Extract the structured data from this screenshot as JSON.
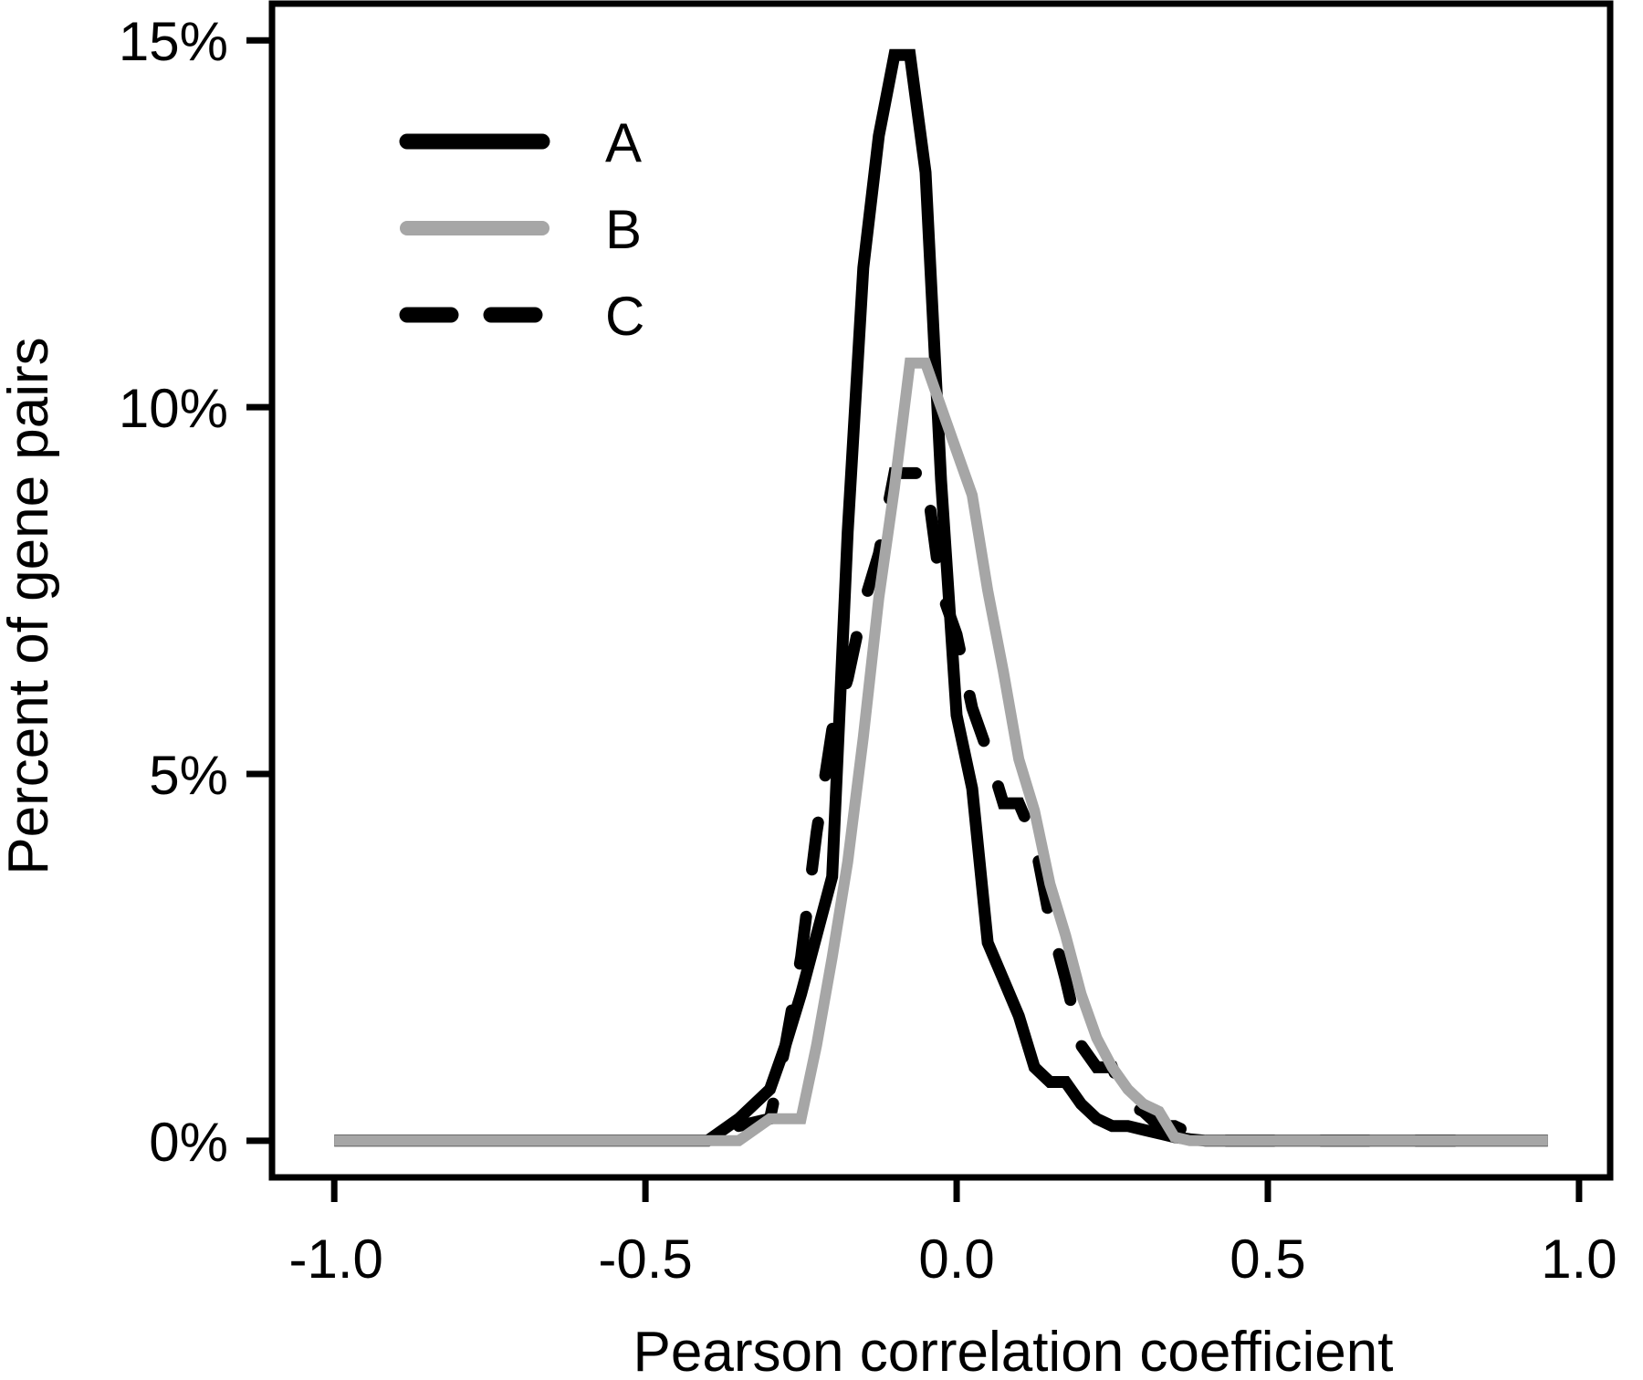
{
  "chart_data": {
    "type": "line",
    "title": "",
    "xlabel": "Pearson correlation coefficient",
    "ylabel": "Percent of gene pairs",
    "xlim": [
      -1.1,
      1.05
    ],
    "ylim": [
      -0.5,
      15.5
    ],
    "xticks": [
      {
        "value": -1.0,
        "label": "-1.0"
      },
      {
        "value": -0.5,
        "label": "-0.5"
      },
      {
        "value": 0.0,
        "label": "0.0"
      },
      {
        "value": 0.5,
        "label": "0.5"
      },
      {
        "value": 1.0,
        "label": "1.0"
      }
    ],
    "yticks": [
      {
        "value": 0,
        "label": "0%"
      },
      {
        "value": 5,
        "label": "5%"
      },
      {
        "value": 10,
        "label": "10%"
      },
      {
        "value": 15,
        "label": "15%"
      }
    ],
    "grid": false,
    "legend_position": "top-left",
    "series": [
      {
        "name": "A",
        "color": "#000000",
        "style": "solid",
        "x": [
          -1.0,
          -0.95,
          -0.9,
          -0.85,
          -0.8,
          -0.75,
          -0.7,
          -0.65,
          -0.6,
          -0.55,
          -0.5,
          -0.45,
          -0.4,
          -0.35,
          -0.3,
          -0.275,
          -0.25,
          -0.225,
          -0.2,
          -0.175,
          -0.15,
          -0.125,
          -0.1,
          -0.075,
          -0.05,
          -0.025,
          0.0,
          0.025,
          0.05,
          0.075,
          0.1,
          0.125,
          0.15,
          0.175,
          0.2,
          0.225,
          0.25,
          0.275,
          0.3,
          0.325,
          0.35,
          0.375,
          0.4,
          0.425,
          0.45,
          0.475,
          0.5,
          0.525,
          0.55,
          0.575,
          0.6,
          0.625,
          0.65,
          0.675,
          0.7,
          0.725,
          0.75,
          0.775,
          0.8,
          0.825,
          0.85,
          0.875,
          0.9,
          0.925,
          0.95
        ],
        "y": [
          0,
          0,
          0,
          0,
          0,
          0,
          0,
          0,
          0,
          0,
          0,
          0,
          0,
          0.3,
          0.7,
          1.3,
          2.0,
          2.8,
          3.6,
          8.3,
          11.9,
          13.7,
          14.8,
          14.8,
          13.2,
          9.0,
          5.8,
          4.8,
          2.7,
          2.2,
          1.7,
          1.0,
          0.8,
          0.8,
          0.5,
          0.3,
          0.2,
          0.2,
          0.15,
          0.1,
          0.05,
          0.02,
          0,
          0,
          0,
          0,
          0,
          0,
          0,
          0,
          0,
          0,
          0,
          0,
          0,
          0,
          0,
          0,
          0,
          0,
          0,
          0,
          0,
          0,
          0
        ]
      },
      {
        "name": "B",
        "color": "#a6a6a6",
        "style": "solid",
        "x": [
          -1.0,
          -0.9,
          -0.8,
          -0.7,
          -0.6,
          -0.55,
          -0.5,
          -0.45,
          -0.4,
          -0.35,
          -0.3,
          -0.275,
          -0.25,
          -0.225,
          -0.2,
          -0.175,
          -0.15,
          -0.125,
          -0.1,
          -0.075,
          -0.05,
          -0.025,
          0.0,
          0.025,
          0.05,
          0.075,
          0.1,
          0.125,
          0.15,
          0.175,
          0.2,
          0.225,
          0.25,
          0.275,
          0.3,
          0.325,
          0.35,
          0.375,
          0.4,
          0.425,
          0.45,
          0.475,
          0.5,
          0.525,
          0.55,
          0.575,
          0.6,
          0.65,
          0.7,
          0.75,
          0.8,
          0.85,
          0.9,
          0.95
        ],
        "y": [
          0,
          0,
          0,
          0,
          0,
          0,
          0,
          0,
          0,
          0,
          0.3,
          0.3,
          0.3,
          1.3,
          2.5,
          3.8,
          5.5,
          7.4,
          8.9,
          10.6,
          10.6,
          10.0,
          9.4,
          8.8,
          7.5,
          6.4,
          5.2,
          4.5,
          3.5,
          2.8,
          2.0,
          1.4,
          1.0,
          0.7,
          0.5,
          0.4,
          0.05,
          0,
          0,
          0,
          0,
          0,
          0,
          0,
          0,
          0,
          0,
          0,
          0,
          0,
          0,
          0,
          0,
          0
        ]
      },
      {
        "name": "C",
        "color": "#000000",
        "style": "dashed",
        "x": [
          -0.35,
          -0.3,
          -0.275,
          -0.25,
          -0.225,
          -0.2,
          -0.175,
          -0.15,
          -0.125,
          -0.1,
          -0.075,
          -0.05,
          -0.025,
          0.0,
          0.025,
          0.05,
          0.075,
          0.1,
          0.125,
          0.15,
          0.175,
          0.2,
          0.225,
          0.25,
          0.275,
          0.3,
          0.325,
          0.35,
          0.375,
          0.4,
          0.425,
          0.45,
          0.475,
          0.5,
          0.525,
          0.55,
          0.575,
          0.6,
          0.625,
          0.65,
          0.675,
          0.7,
          0.725,
          0.75,
          0.775,
          0.8
        ],
        "y": [
          0.2,
          0.3,
          1.3,
          2.5,
          4.2,
          5.6,
          6.3,
          7.3,
          8.0,
          9.1,
          9.1,
          9.1,
          7.5,
          6.9,
          5.9,
          5.3,
          4.6,
          4.6,
          4.1,
          3.0,
          2.2,
          1.3,
          1.0,
          1.0,
          0.5,
          0.4,
          0.2,
          0.2,
          0.1,
          0.05,
          0,
          0,
          0,
          0,
          0,
          0,
          0,
          0,
          0,
          0,
          0,
          0,
          0,
          0,
          0,
          0
        ]
      }
    ]
  }
}
